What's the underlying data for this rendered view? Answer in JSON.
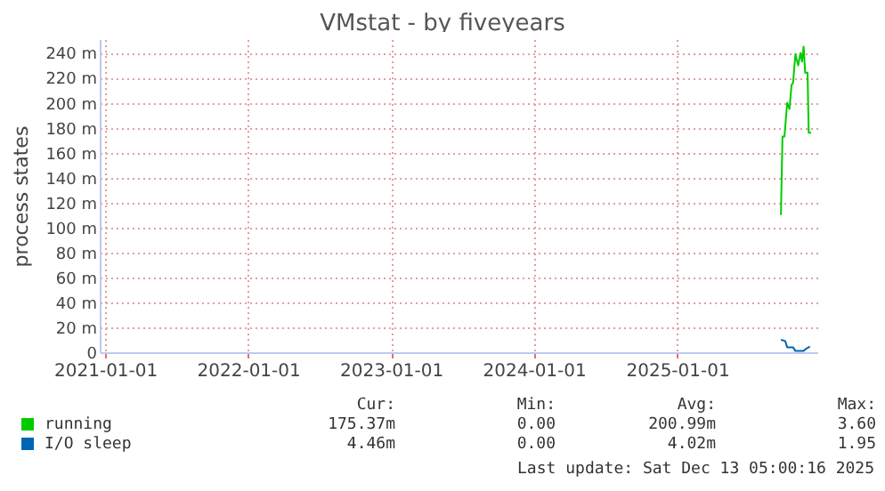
{
  "chart_data": {
    "type": "line",
    "title": "VMstat - by fiveyears",
    "ylabel": "process states",
    "xlim": [
      "2020-12-18",
      "2025-12-25"
    ],
    "xticks": [
      {
        "value": "2021-01-01",
        "label": "2021-01-01"
      },
      {
        "value": "2022-01-01",
        "label": "2022-01-01"
      },
      {
        "value": "2023-01-01",
        "label": "2023-01-01"
      },
      {
        "value": "2024-01-01",
        "label": "2024-01-01"
      },
      {
        "value": "2025-01-01",
        "label": "2025-01-01"
      }
    ],
    "ylim": [
      0,
      251
    ],
    "yticks": [
      {
        "value": 0,
        "label": "0"
      },
      {
        "value": 20,
        "label": "20 m"
      },
      {
        "value": 40,
        "label": "40 m"
      },
      {
        "value": 60,
        "label": "60 m"
      },
      {
        "value": 80,
        "label": "80 m"
      },
      {
        "value": 100,
        "label": "100 m"
      },
      {
        "value": 120,
        "label": "120 m"
      },
      {
        "value": 140,
        "label": "140 m"
      },
      {
        "value": 160,
        "label": "160 m"
      },
      {
        "value": 180,
        "label": "180 m"
      },
      {
        "value": 200,
        "label": "200 m"
      },
      {
        "value": 220,
        "label": "220 m"
      },
      {
        "value": 240,
        "label": "240 m"
      }
    ],
    "series": [
      {
        "name": "running",
        "color": "#00cc00",
        "x": [
          "2025-09-23",
          "2025-09-27",
          "2025-10-02",
          "2025-10-09",
          "2025-10-15",
          "2025-10-20",
          "2025-10-24",
          "2025-10-30",
          "2025-11-06",
          "2025-11-12",
          "2025-11-16",
          "2025-11-20",
          "2025-11-24",
          "2025-11-30",
          "2025-12-03",
          "2025-12-09"
        ],
        "values": [
          110,
          173,
          173,
          200,
          195,
          214,
          216,
          239,
          230,
          240,
          233,
          245,
          224,
          224,
          176,
          176
        ]
      },
      {
        "name": "I/O sleep",
        "color": "#0066b3",
        "x": [
          "2025-09-23",
          "2025-10-04",
          "2025-10-09",
          "2025-10-24",
          "2025-10-30",
          "2025-11-20",
          "2025-11-27",
          "2025-12-06"
        ],
        "values": [
          10,
          9,
          4,
          4,
          1,
          1,
          3,
          4.5
        ]
      }
    ],
    "grid": true,
    "line_style": "solid",
    "legend": "bottom",
    "annotations": [
      "Cur:",
      "Min:",
      "Avg:",
      "Max:",
      "175.37m",
      "0.00",
      "200.99m",
      "3.60",
      "4.46m",
      "0.00",
      "4.02m",
      "1.95",
      "Last update: Sat Dec 13 05:00:16 2025"
    ]
  }
}
